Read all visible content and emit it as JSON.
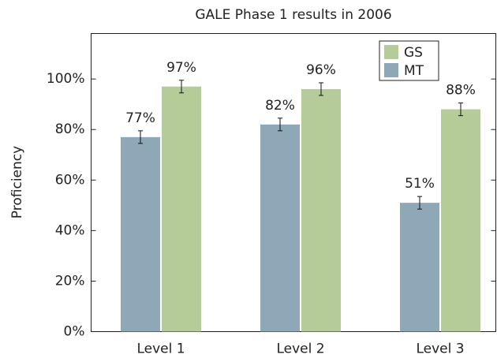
{
  "chart_data": {
    "type": "bar",
    "title": "GALE Phase 1 results in 2006",
    "y_label": "Proficiency",
    "categories": [
      "Level 1",
      "Level 2",
      "Level 3"
    ],
    "series": [
      {
        "name": "MT",
        "color": "#8fa8b8",
        "values": [
          77,
          82,
          51
        ],
        "value_labels": [
          "77%",
          "82%",
          "51%"
        ],
        "errors": [
          2.5,
          2.5,
          2.5
        ]
      },
      {
        "name": "GS",
        "color": "#b5cc98",
        "values": [
          97,
          96,
          88
        ],
        "value_labels": [
          "97%",
          "96%",
          "88%"
        ],
        "errors": [
          2.5,
          2.5,
          2.5
        ]
      }
    ],
    "ylim": [
      0,
      118
    ],
    "yticks": [
      {
        "value": 0,
        "label": "0%"
      },
      {
        "value": 20,
        "label": "20%"
      },
      {
        "value": 40,
        "label": "40%"
      },
      {
        "value": 60,
        "label": "60%"
      },
      {
        "value": 80,
        "label": "80%"
      },
      {
        "value": 100,
        "label": "100%"
      }
    ],
    "legend": "upper right",
    "grid": false
  }
}
